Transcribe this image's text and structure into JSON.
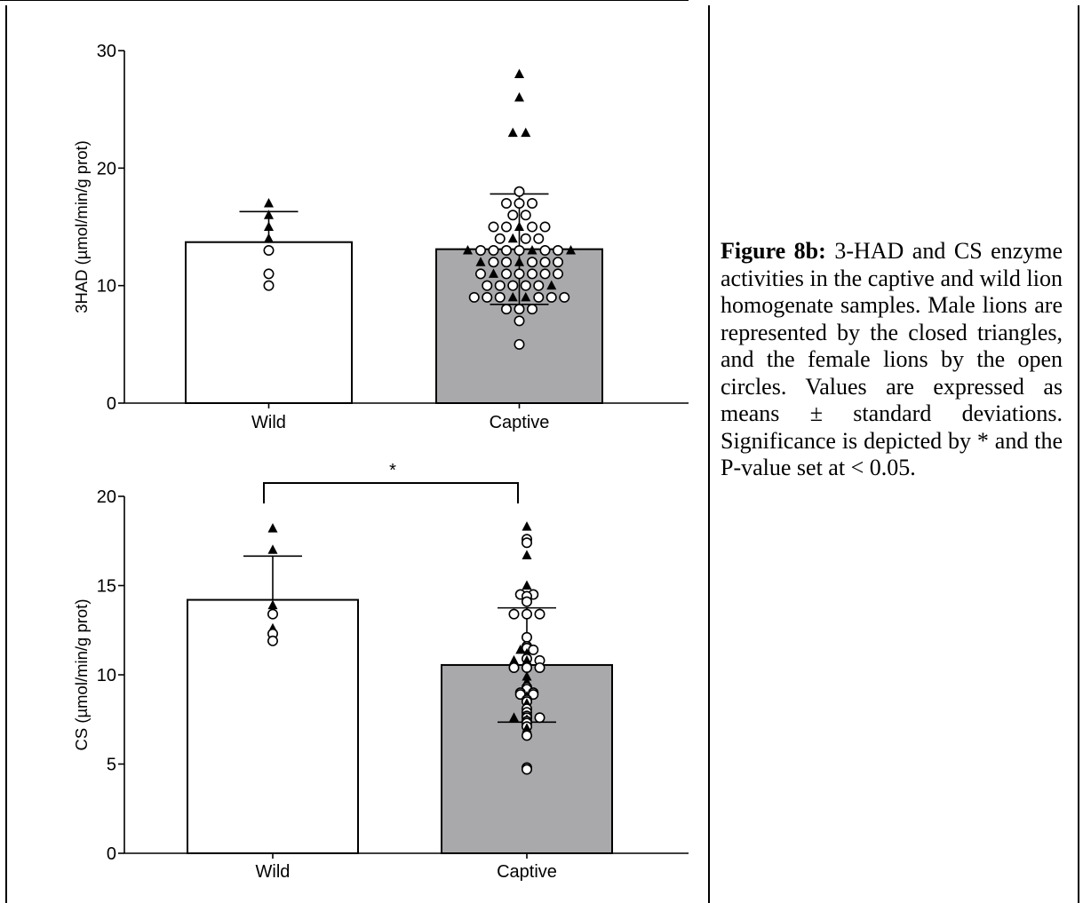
{
  "caption": {
    "bold": "Figure 8b:",
    "text": " 3-HAD and CS enzyme activities in the captive and wild lion homogenate samples. Male lions are represented by the closed triangles, and the female lions by the open circles. Values are expressed as means ± standard deviations. Significance is depicted by * and the P-value set at < 0.05."
  },
  "colors": {
    "wild_bar": "#ffffff",
    "captive_bar": "#a9a8ab",
    "ink": "#000000"
  },
  "chart_data": [
    {
      "type": "bar",
      "categories": [
        "Wild",
        "Captive"
      ],
      "ylabel": "3HAD (µmol/min/g prot)",
      "ylim": [
        0,
        30
      ],
      "yticks": [
        0,
        10,
        20,
        30
      ],
      "values": [
        13.7,
        13.1
      ],
      "sd": [
        2.6,
        4.7
      ],
      "significance": null,
      "points": [
        {
          "cat": 0,
          "y": 17.0,
          "shape": "triangle"
        },
        {
          "cat": 0,
          "y": 16.0,
          "shape": "triangle"
        },
        {
          "cat": 0,
          "y": 15.0,
          "shape": "triangle"
        },
        {
          "cat": 0,
          "y": 14.0,
          "shape": "triangle"
        },
        {
          "cat": 0,
          "y": 13.0,
          "shape": "circle"
        },
        {
          "cat": 0,
          "y": 11.0,
          "shape": "circle"
        },
        {
          "cat": 0,
          "y": 10.0,
          "shape": "circle"
        },
        {
          "cat": 1,
          "y": 28.0,
          "shape": "triangle"
        },
        {
          "cat": 1,
          "y": 26.0,
          "shape": "triangle"
        },
        {
          "cat": 1,
          "y": 23.0,
          "shape": "triangle"
        },
        {
          "cat": 1,
          "y": 23.0,
          "shape": "triangle"
        },
        {
          "cat": 1,
          "y": 18.0,
          "shape": "circle"
        },
        {
          "cat": 1,
          "y": 17.0,
          "shape": "circle"
        },
        {
          "cat": 1,
          "y": 17.0,
          "shape": "circle"
        },
        {
          "cat": 1,
          "y": 17.0,
          "shape": "circle"
        },
        {
          "cat": 1,
          "y": 16.0,
          "shape": "circle"
        },
        {
          "cat": 1,
          "y": 16.0,
          "shape": "circle"
        },
        {
          "cat": 1,
          "y": 15.0,
          "shape": "circle"
        },
        {
          "cat": 1,
          "y": 15.0,
          "shape": "circle"
        },
        {
          "cat": 1,
          "y": 15.0,
          "shape": "triangle"
        },
        {
          "cat": 1,
          "y": 15.0,
          "shape": "circle"
        },
        {
          "cat": 1,
          "y": 15.0,
          "shape": "circle"
        },
        {
          "cat": 1,
          "y": 14.0,
          "shape": "circle"
        },
        {
          "cat": 1,
          "y": 14.0,
          "shape": "triangle"
        },
        {
          "cat": 1,
          "y": 14.0,
          "shape": "circle"
        },
        {
          "cat": 1,
          "y": 14.0,
          "shape": "circle"
        },
        {
          "cat": 1,
          "y": 13.0,
          "shape": "triangle"
        },
        {
          "cat": 1,
          "y": 13.0,
          "shape": "circle"
        },
        {
          "cat": 1,
          "y": 13.0,
          "shape": "circle"
        },
        {
          "cat": 1,
          "y": 13.0,
          "shape": "circle"
        },
        {
          "cat": 1,
          "y": 13.0,
          "shape": "circle"
        },
        {
          "cat": 1,
          "y": 13.0,
          "shape": "triangle"
        },
        {
          "cat": 1,
          "y": 13.0,
          "shape": "circle"
        },
        {
          "cat": 1,
          "y": 13.0,
          "shape": "circle"
        },
        {
          "cat": 1,
          "y": 13.0,
          "shape": "triangle"
        },
        {
          "cat": 1,
          "y": 12.0,
          "shape": "triangle"
        },
        {
          "cat": 1,
          "y": 12.0,
          "shape": "circle"
        },
        {
          "cat": 1,
          "y": 12.0,
          "shape": "circle"
        },
        {
          "cat": 1,
          "y": 12.0,
          "shape": "triangle"
        },
        {
          "cat": 1,
          "y": 12.0,
          "shape": "circle"
        },
        {
          "cat": 1,
          "y": 12.0,
          "shape": "circle"
        },
        {
          "cat": 1,
          "y": 12.0,
          "shape": "circle"
        },
        {
          "cat": 1,
          "y": 11.0,
          "shape": "circle"
        },
        {
          "cat": 1,
          "y": 11.0,
          "shape": "triangle"
        },
        {
          "cat": 1,
          "y": 11.0,
          "shape": "circle"
        },
        {
          "cat": 1,
          "y": 11.0,
          "shape": "circle"
        },
        {
          "cat": 1,
          "y": 11.0,
          "shape": "circle"
        },
        {
          "cat": 1,
          "y": 11.0,
          "shape": "circle"
        },
        {
          "cat": 1,
          "y": 11.0,
          "shape": "circle"
        },
        {
          "cat": 1,
          "y": 10.0,
          "shape": "circle"
        },
        {
          "cat": 1,
          "y": 10.0,
          "shape": "circle"
        },
        {
          "cat": 1,
          "y": 10.0,
          "shape": "circle"
        },
        {
          "cat": 1,
          "y": 10.0,
          "shape": "circle"
        },
        {
          "cat": 1,
          "y": 10.0,
          "shape": "circle"
        },
        {
          "cat": 1,
          "y": 10.0,
          "shape": "triangle"
        },
        {
          "cat": 1,
          "y": 9.0,
          "shape": "circle"
        },
        {
          "cat": 1,
          "y": 9.0,
          "shape": "circle"
        },
        {
          "cat": 1,
          "y": 9.0,
          "shape": "circle"
        },
        {
          "cat": 1,
          "y": 9.0,
          "shape": "triangle"
        },
        {
          "cat": 1,
          "y": 9.0,
          "shape": "triangle"
        },
        {
          "cat": 1,
          "y": 9.0,
          "shape": "circle"
        },
        {
          "cat": 1,
          "y": 9.0,
          "shape": "circle"
        },
        {
          "cat": 1,
          "y": 9.0,
          "shape": "circle"
        },
        {
          "cat": 1,
          "y": 8.0,
          "shape": "circle"
        },
        {
          "cat": 1,
          "y": 8.0,
          "shape": "circle"
        },
        {
          "cat": 1,
          "y": 8.0,
          "shape": "circle"
        },
        {
          "cat": 1,
          "y": 7.0,
          "shape": "circle"
        },
        {
          "cat": 1,
          "y": 5.0,
          "shape": "circle"
        }
      ]
    },
    {
      "type": "bar",
      "categories": [
        "Wild",
        "Captive"
      ],
      "ylabel": "CS (µmol/min/g prot)",
      "ylim": [
        0,
        20
      ],
      "yticks": [
        0,
        5,
        10,
        15,
        20
      ],
      "values": [
        14.2,
        10.55
      ],
      "sd": [
        2.45,
        3.2
      ],
      "significance": "*",
      "points": [
        {
          "cat": 0,
          "y": 18.2,
          "shape": "triangle"
        },
        {
          "cat": 0,
          "y": 17.0,
          "shape": "triangle"
        },
        {
          "cat": 0,
          "y": 13.9,
          "shape": "triangle"
        },
        {
          "cat": 0,
          "y": 13.4,
          "shape": "circle"
        },
        {
          "cat": 0,
          "y": 12.6,
          "shape": "triangle"
        },
        {
          "cat": 0,
          "y": 12.3,
          "shape": "circle"
        },
        {
          "cat": 0,
          "y": 11.9,
          "shape": "circle"
        },
        {
          "cat": 1,
          "y": 18.3,
          "shape": "triangle"
        },
        {
          "cat": 1,
          "y": 17.6,
          "shape": "circle"
        },
        {
          "cat": 1,
          "y": 17.4,
          "shape": "circle"
        },
        {
          "cat": 1,
          "y": 16.7,
          "shape": "triangle"
        },
        {
          "cat": 1,
          "y": 15.0,
          "shape": "triangle"
        },
        {
          "cat": 1,
          "y": 14.5,
          "shape": "circle"
        },
        {
          "cat": 1,
          "y": 14.5,
          "shape": "circle"
        },
        {
          "cat": 1,
          "y": 14.4,
          "shape": "circle"
        },
        {
          "cat": 1,
          "y": 14.1,
          "shape": "circle"
        },
        {
          "cat": 1,
          "y": 13.4,
          "shape": "circle"
        },
        {
          "cat": 1,
          "y": 13.4,
          "shape": "circle"
        },
        {
          "cat": 1,
          "y": 13.4,
          "shape": "circle"
        },
        {
          "cat": 1,
          "y": 12.1,
          "shape": "circle"
        },
        {
          "cat": 1,
          "y": 11.6,
          "shape": "circle"
        },
        {
          "cat": 1,
          "y": 11.5,
          "shape": "circle"
        },
        {
          "cat": 1,
          "y": 11.4,
          "shape": "triangle"
        },
        {
          "cat": 1,
          "y": 11.4,
          "shape": "circle"
        },
        {
          "cat": 1,
          "y": 11.2,
          "shape": "triangle"
        },
        {
          "cat": 1,
          "y": 10.9,
          "shape": "circle"
        },
        {
          "cat": 1,
          "y": 10.8,
          "shape": "triangle"
        },
        {
          "cat": 1,
          "y": 10.8,
          "shape": "triangle"
        },
        {
          "cat": 1,
          "y": 10.8,
          "shape": "circle"
        },
        {
          "cat": 1,
          "y": 10.7,
          "shape": "triangle"
        },
        {
          "cat": 1,
          "y": 10.6,
          "shape": "triangle"
        },
        {
          "cat": 1,
          "y": 10.5,
          "shape": "triangle"
        },
        {
          "cat": 1,
          "y": 10.4,
          "shape": "circle"
        },
        {
          "cat": 1,
          "y": 10.4,
          "shape": "circle"
        },
        {
          "cat": 1,
          "y": 10.4,
          "shape": "circle"
        },
        {
          "cat": 1,
          "y": 9.9,
          "shape": "triangle"
        },
        {
          "cat": 1,
          "y": 9.6,
          "shape": "triangle"
        },
        {
          "cat": 1,
          "y": 9.3,
          "shape": "circle"
        },
        {
          "cat": 1,
          "y": 9.2,
          "shape": "circle"
        },
        {
          "cat": 1,
          "y": 9.0,
          "shape": "circle"
        },
        {
          "cat": 1,
          "y": 9.0,
          "shape": "circle"
        },
        {
          "cat": 1,
          "y": 8.9,
          "shape": "circle"
        },
        {
          "cat": 1,
          "y": 8.9,
          "shape": "circle"
        },
        {
          "cat": 1,
          "y": 8.8,
          "shape": "triangle"
        },
        {
          "cat": 1,
          "y": 8.6,
          "shape": "circle"
        },
        {
          "cat": 1,
          "y": 8.5,
          "shape": "circle"
        },
        {
          "cat": 1,
          "y": 8.4,
          "shape": "triangle"
        },
        {
          "cat": 1,
          "y": 8.3,
          "shape": "triangle"
        },
        {
          "cat": 1,
          "y": 8.1,
          "shape": "circle"
        },
        {
          "cat": 1,
          "y": 7.9,
          "shape": "circle"
        },
        {
          "cat": 1,
          "y": 7.7,
          "shape": "circle"
        },
        {
          "cat": 1,
          "y": 7.6,
          "shape": "triangle"
        },
        {
          "cat": 1,
          "y": 7.6,
          "shape": "circle"
        },
        {
          "cat": 1,
          "y": 7.6,
          "shape": "circle"
        },
        {
          "cat": 1,
          "y": 7.5,
          "shape": "triangle"
        },
        {
          "cat": 1,
          "y": 7.4,
          "shape": "circle"
        },
        {
          "cat": 1,
          "y": 7.3,
          "shape": "circle"
        },
        {
          "cat": 1,
          "y": 7.1,
          "shape": "circle"
        },
        {
          "cat": 1,
          "y": 7.0,
          "shape": "triangle"
        },
        {
          "cat": 1,
          "y": 6.6,
          "shape": "circle"
        },
        {
          "cat": 1,
          "y": 4.8,
          "shape": "circle"
        },
        {
          "cat": 1,
          "y": 4.7,
          "shape": "circle"
        }
      ]
    }
  ]
}
